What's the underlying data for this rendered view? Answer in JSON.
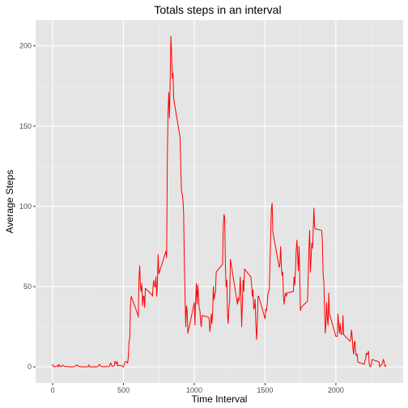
{
  "chart_data": {
    "type": "line",
    "title": "Totals steps in an interval",
    "xlabel": "Time Interval",
    "ylabel": "Average Steps",
    "xlim": [
      -120,
      2475
    ],
    "ylim": [
      -10,
      216
    ],
    "x_ticks": [
      0,
      500,
      1000,
      1500,
      2000
    ],
    "y_ticks": [
      0,
      50,
      100,
      150,
      200
    ],
    "grid": true,
    "legend": "none",
    "colors": {
      "line": "#ff0000",
      "panel": "#e5e5e5",
      "grid_major": "#ffffff",
      "grid_minor": "#f2f2f2"
    },
    "series": [
      {
        "points": [
          [
            0,
            1.7
          ],
          [
            5,
            0.3
          ],
          [
            10,
            0.1
          ],
          [
            20,
            0.1
          ],
          [
            30,
            0.5
          ],
          [
            35,
            0.9
          ],
          [
            40,
            0
          ],
          [
            45,
            1.5
          ],
          [
            55,
            0.1
          ],
          [
            60,
            0.2
          ],
          [
            70,
            1.1
          ],
          [
            80,
            0.4
          ],
          [
            90,
            0.2
          ],
          [
            100,
            0.2
          ],
          [
            120,
            0
          ],
          [
            150,
            0.1
          ],
          [
            175,
            1.2
          ],
          [
            180,
            0.4
          ],
          [
            190,
            0.3
          ],
          [
            205,
            0
          ],
          [
            230,
            0
          ],
          [
            250,
            0.1
          ],
          [
            255,
            1.3
          ],
          [
            260,
            0
          ],
          [
            300,
            0.1
          ],
          [
            310,
            0
          ],
          [
            320,
            0.2
          ],
          [
            330,
            1.6
          ],
          [
            340,
            0.4
          ],
          [
            355,
            0.1
          ],
          [
            400,
            0.2
          ],
          [
            410,
            2.5
          ],
          [
            420,
            0.3
          ],
          [
            435,
            0.7
          ],
          [
            440,
            3.5
          ],
          [
            450,
            1.6
          ],
          [
            455,
            3.4
          ],
          [
            460,
            0.5
          ],
          [
            470,
            0.9
          ],
          [
            485,
            0.7
          ],
          [
            500,
            0
          ],
          [
            510,
            3.0
          ],
          [
            520,
            3.3
          ],
          [
            530,
            2.3
          ],
          [
            535,
            6.8
          ],
          [
            540,
            16
          ],
          [
            545,
            18
          ],
          [
            550,
            39
          ],
          [
            555,
            44
          ],
          [
            600,
            33
          ],
          [
            605,
            31
          ],
          [
            610,
            55
          ],
          [
            615,
            63
          ],
          [
            620,
            50
          ],
          [
            625,
            47
          ],
          [
            630,
            52
          ],
          [
            635,
            38
          ],
          [
            640,
            44
          ],
          [
            645,
            44
          ],
          [
            650,
            37
          ],
          [
            655,
            49
          ],
          [
            700,
            45
          ],
          [
            705,
            44
          ],
          [
            710,
            51
          ],
          [
            715,
            54
          ],
          [
            720,
            50
          ],
          [
            725,
            50
          ],
          [
            730,
            56
          ],
          [
            735,
            44
          ],
          [
            740,
            52
          ],
          [
            745,
            70
          ],
          [
            750,
            58
          ],
          [
            800,
            72
          ],
          [
            805,
            68
          ],
          [
            810,
            130
          ],
          [
            815,
            158
          ],
          [
            820,
            171
          ],
          [
            825,
            155
          ],
          [
            830,
            177
          ],
          [
            835,
            206
          ],
          [
            840,
            196
          ],
          [
            845,
            180
          ],
          [
            850,
            183
          ],
          [
            855,
            167
          ],
          [
            900,
            143
          ],
          [
            905,
            124
          ],
          [
            910,
            109
          ],
          [
            915,
            108
          ],
          [
            920,
            104
          ],
          [
            925,
            96
          ],
          [
            930,
            66
          ],
          [
            935,
            45
          ],
          [
            940,
            25
          ],
          [
            945,
            38
          ],
          [
            950,
            35
          ],
          [
            955,
            21
          ],
          [
            1000,
            40
          ],
          [
            1005,
            26
          ],
          [
            1010,
            42
          ],
          [
            1015,
            52
          ],
          [
            1020,
            39
          ],
          [
            1025,
            51
          ],
          [
            1030,
            44
          ],
          [
            1035,
            37
          ],
          [
            1040,
            35
          ],
          [
            1045,
            28
          ],
          [
            1050,
            25
          ],
          [
            1055,
            32
          ],
          [
            1100,
            31
          ],
          [
            1105,
            30
          ],
          [
            1110,
            22
          ],
          [
            1115,
            26
          ],
          [
            1120,
            33
          ],
          [
            1125,
            27
          ],
          [
            1130,
            34
          ],
          [
            1135,
            50
          ],
          [
            1140,
            42
          ],
          [
            1145,
            45
          ],
          [
            1150,
            46
          ],
          [
            1155,
            59
          ],
          [
            1200,
            64
          ],
          [
            1205,
            88
          ],
          [
            1210,
            95
          ],
          [
            1215,
            93
          ],
          [
            1220,
            63
          ],
          [
            1225,
            50
          ],
          [
            1230,
            54
          ],
          [
            1235,
            32
          ],
          [
            1240,
            27
          ],
          [
            1245,
            37
          ],
          [
            1250,
            41
          ],
          [
            1255,
            67
          ],
          [
            1300,
            42
          ],
          [
            1305,
            39
          ],
          [
            1310,
            43
          ],
          [
            1315,
            41
          ],
          [
            1320,
            46
          ],
          [
            1325,
            56
          ],
          [
            1330,
            43
          ],
          [
            1335,
            25
          ],
          [
            1340,
            40
          ],
          [
            1345,
            54
          ],
          [
            1350,
            47
          ],
          [
            1355,
            61
          ],
          [
            1400,
            56
          ],
          [
            1405,
            51
          ],
          [
            1410,
            44
          ],
          [
            1415,
            48
          ],
          [
            1420,
            36
          ],
          [
            1425,
            37
          ],
          [
            1430,
            42
          ],
          [
            1435,
            27
          ],
          [
            1440,
            17
          ],
          [
            1445,
            26
          ],
          [
            1450,
            44
          ],
          [
            1455,
            44
          ],
          [
            1500,
            30
          ],
          [
            1505,
            36
          ],
          [
            1510,
            35
          ],
          [
            1515,
            39
          ],
          [
            1520,
            45
          ],
          [
            1525,
            47
          ],
          [
            1530,
            48
          ],
          [
            1535,
            65
          ],
          [
            1540,
            83
          ],
          [
            1545,
            99
          ],
          [
            1550,
            102
          ],
          [
            1555,
            84
          ],
          [
            1600,
            62
          ],
          [
            1605,
            64
          ],
          [
            1610,
            75
          ],
          [
            1615,
            63
          ],
          [
            1620,
            57
          ],
          [
            1625,
            59
          ],
          [
            1630,
            44
          ],
          [
            1635,
            39
          ],
          [
            1640,
            44
          ],
          [
            1645,
            46
          ],
          [
            1650,
            44
          ],
          [
            1655,
            46
          ],
          [
            1700,
            47
          ],
          [
            1705,
            56
          ],
          [
            1710,
            51
          ],
          [
            1715,
            61
          ],
          [
            1720,
            73
          ],
          [
            1725,
            79
          ],
          [
            1730,
            69
          ],
          [
            1735,
            60
          ],
          [
            1740,
            75
          ],
          [
            1745,
            57
          ],
          [
            1750,
            35
          ],
          [
            1755,
            37
          ],
          [
            1800,
            41
          ],
          [
            1805,
            58
          ],
          [
            1810,
            74
          ],
          [
            1815,
            85
          ],
          [
            1820,
            59
          ],
          [
            1825,
            68
          ],
          [
            1830,
            77
          ],
          [
            1835,
            74
          ],
          [
            1840,
            85
          ],
          [
            1845,
            99
          ],
          [
            1850,
            87
          ],
          [
            1855,
            86
          ],
          [
            1900,
            85
          ],
          [
            1905,
            78
          ],
          [
            1910,
            58
          ],
          [
            1915,
            53
          ],
          [
            1920,
            37
          ],
          [
            1925,
            21
          ],
          [
            1930,
            27
          ],
          [
            1935,
            40
          ],
          [
            1940,
            30
          ],
          [
            1945,
            26
          ],
          [
            1950,
            46
          ],
          [
            1955,
            33
          ],
          [
            2000,
            19
          ],
          [
            2005,
            19
          ],
          [
            2010,
            19
          ],
          [
            2015,
            33
          ],
          [
            2020,
            27
          ],
          [
            2025,
            21
          ],
          [
            2030,
            27
          ],
          [
            2035,
            21
          ],
          [
            2040,
            20
          ],
          [
            2045,
            21
          ],
          [
            2050,
            32
          ],
          [
            2055,
            20
          ],
          [
            2100,
            16
          ],
          [
            2105,
            17
          ],
          [
            2110,
            23
          ],
          [
            2115,
            19
          ],
          [
            2120,
            12
          ],
          [
            2125,
            8
          ],
          [
            2130,
            15
          ],
          [
            2135,
            16
          ],
          [
            2140,
            8
          ],
          [
            2145,
            7
          ],
          [
            2150,
            8
          ],
          [
            2155,
            3
          ],
          [
            2200,
            1.6
          ],
          [
            2205,
            3.7
          ],
          [
            2210,
            4.8
          ],
          [
            2215,
            8.5
          ],
          [
            2220,
            7.5
          ],
          [
            2225,
            8.4
          ],
          [
            2230,
            9.8
          ],
          [
            2235,
            2.2
          ],
          [
            2240,
            0.3
          ],
          [
            2245,
            0.1
          ],
          [
            2250,
            1.6
          ],
          [
            2255,
            4.6
          ],
          [
            2300,
            3.3
          ],
          [
            2305,
            2.8
          ],
          [
            2310,
            0
          ],
          [
            2315,
            0.8
          ],
          [
            2320,
            1.0
          ],
          [
            2325,
            1.6
          ],
          [
            2330,
            2.6
          ],
          [
            2335,
            4.7
          ],
          [
            2340,
            3.3
          ],
          [
            2345,
            0.6
          ],
          [
            2350,
            0.2
          ],
          [
            2355,
            1.1
          ]
        ]
      }
    ]
  }
}
